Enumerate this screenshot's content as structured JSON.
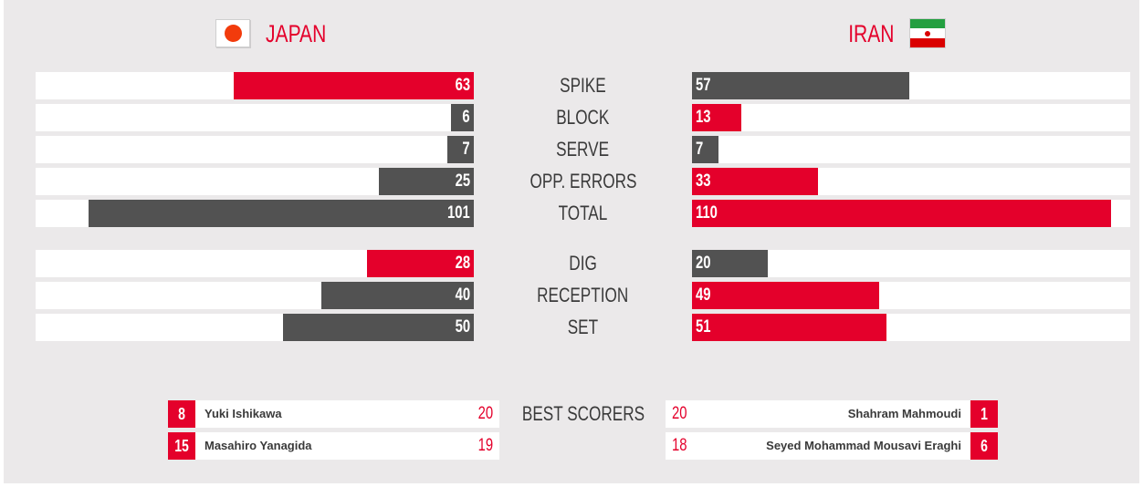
{
  "colors": {
    "accent": "#e4002b",
    "dark": "#525252",
    "background": "#ebe9ea",
    "track": "#ffffff"
  },
  "teams": {
    "left": {
      "name": "JAPAN",
      "flag": "japan-flag-icon"
    },
    "right": {
      "name": "IRAN",
      "flag": "iran-flag-icon"
    }
  },
  "max_value": 115,
  "stats": [
    {
      "label": "SPIKE",
      "left": 63,
      "right": 57,
      "left_color": "red",
      "right_color": "dark"
    },
    {
      "label": "BLOCK",
      "left": 6,
      "right": 13,
      "left_color": "dark",
      "right_color": "red"
    },
    {
      "label": "SERVE",
      "left": 7,
      "right": 7,
      "left_color": "dark",
      "right_color": "dark"
    },
    {
      "label": "OPP. ERRORS",
      "left": 25,
      "right": 33,
      "left_color": "dark",
      "right_color": "red"
    },
    {
      "label": "TOTAL",
      "left": 101,
      "right": 110,
      "left_color": "dark",
      "right_color": "red"
    },
    {
      "label": "DIG",
      "left": 28,
      "right": 20,
      "left_color": "red",
      "right_color": "dark"
    },
    {
      "label": "RECEPTION",
      "left": 40,
      "right": 49,
      "left_color": "dark",
      "right_color": "red"
    },
    {
      "label": "SET",
      "left": 50,
      "right": 51,
      "left_color": "dark",
      "right_color": "red"
    }
  ],
  "best_scorers": {
    "title": "BEST SCORERS",
    "left": [
      {
        "number": "8",
        "name": "Yuki Ishikawa",
        "points": "20"
      },
      {
        "number": "15",
        "name": "Masahiro Yanagida",
        "points": "19"
      }
    ],
    "right": [
      {
        "number": "1",
        "name": "Shahram Mahmoudi",
        "points": "20"
      },
      {
        "number": "6",
        "name": "Seyed Mohammad Mousavi Eraghi",
        "points": "18"
      }
    ]
  }
}
